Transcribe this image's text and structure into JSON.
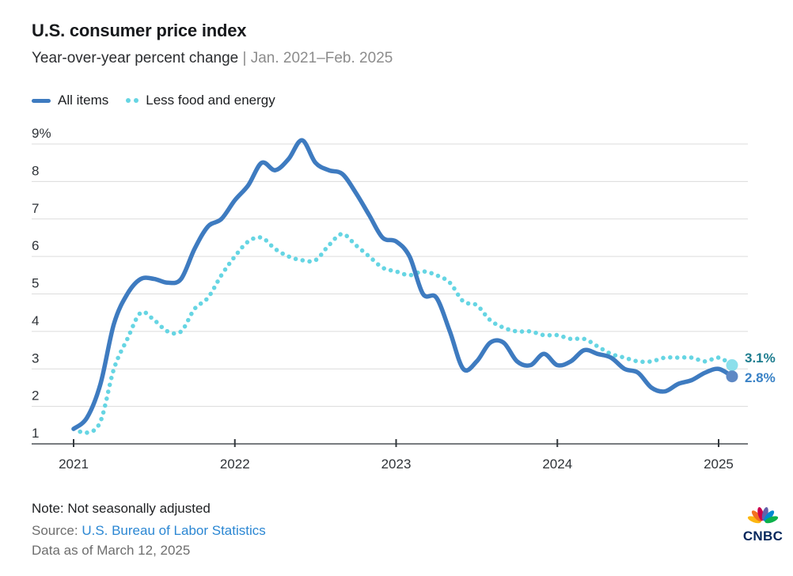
{
  "chart_data": {
    "type": "line",
    "title": "U.S. consumer price index",
    "subtitle": "Year-over-year percent change",
    "separator": "|",
    "date_range": "Jan. 2021–Feb. 2025",
    "x_start": "2021-01",
    "x_end": "2025-02",
    "x_unit": "month",
    "ylim": [
      1,
      9
    ],
    "grid": true,
    "legend_position": "top-left",
    "y_ticks": [
      {
        "value": 9,
        "label": "9%"
      },
      {
        "value": 8,
        "label": "8"
      },
      {
        "value": 7,
        "label": "7"
      },
      {
        "value": 6,
        "label": "6"
      },
      {
        "value": 5,
        "label": "5"
      },
      {
        "value": 4,
        "label": "4"
      },
      {
        "value": 3,
        "label": "3"
      },
      {
        "value": 2,
        "label": "2"
      },
      {
        "value": 1,
        "label": "1"
      }
    ],
    "x_ticks": [
      {
        "label": "2021",
        "month_index": 0
      },
      {
        "label": "2022",
        "month_index": 12
      },
      {
        "label": "2023",
        "month_index": 24
      },
      {
        "label": "2024",
        "month_index": 36
      },
      {
        "label": "2025",
        "month_index": 48
      }
    ],
    "colors": {
      "grid": "#dcdcdc",
      "axis": "#4b5055",
      "tick": "#33383d",
      "tick_label": "#2f3338"
    },
    "series": [
      {
        "name": "All items",
        "style": "solid",
        "color": "#3E7BC0",
        "end_dot_color": "#5E88C4",
        "end_label": "2.8%",
        "end_label_color": "#3A82C6",
        "values": [
          1.4,
          1.7,
          2.6,
          4.2,
          5.0,
          5.4,
          5.4,
          5.3,
          5.4,
          6.2,
          6.8,
          7.0,
          7.5,
          7.9,
          8.5,
          8.3,
          8.6,
          9.1,
          8.5,
          8.3,
          8.2,
          7.7,
          7.1,
          6.5,
          6.4,
          6.0,
          5.0,
          4.9,
          4.0,
          3.0,
          3.2,
          3.7,
          3.7,
          3.2,
          3.1,
          3.4,
          3.1,
          3.2,
          3.5,
          3.4,
          3.3,
          3.0,
          2.9,
          2.5,
          2.4,
          2.6,
          2.7,
          2.9,
          3.0,
          2.8
        ]
      },
      {
        "name": "Less food and energy",
        "style": "dotted",
        "color": "#66D5E3",
        "end_dot_color": "#8BDFEB",
        "end_label": "3.1%",
        "end_label_color": "#1E7D8F",
        "values": [
          1.4,
          1.3,
          1.6,
          3.0,
          3.8,
          4.5,
          4.3,
          4.0,
          4.0,
          4.6,
          4.9,
          5.5,
          6.0,
          6.4,
          6.5,
          6.2,
          6.0,
          5.9,
          5.9,
          6.3,
          6.6,
          6.3,
          6.0,
          5.7,
          5.6,
          5.5,
          5.6,
          5.5,
          5.3,
          4.8,
          4.7,
          4.3,
          4.1,
          4.0,
          4.0,
          3.9,
          3.9,
          3.8,
          3.8,
          3.6,
          3.4,
          3.3,
          3.2,
          3.2,
          3.3,
          3.3,
          3.3,
          3.2,
          3.3,
          3.1
        ]
      }
    ]
  },
  "footer": {
    "note": "Note: Not seasonally adjusted",
    "source_prefix": "Source: ",
    "source_link": "U.S. Bureau of Labor Statistics",
    "source_link_color": "#2B87D3",
    "data_as_of": "Data as of March 12, 2025",
    "logo_text": "CNBC",
    "logo_text_color": "#04275C",
    "peacock_colors": [
      "#FCB711",
      "#F37021",
      "#CC004C",
      "#6460AA",
      "#0089D0",
      "#0DB14B"
    ]
  }
}
